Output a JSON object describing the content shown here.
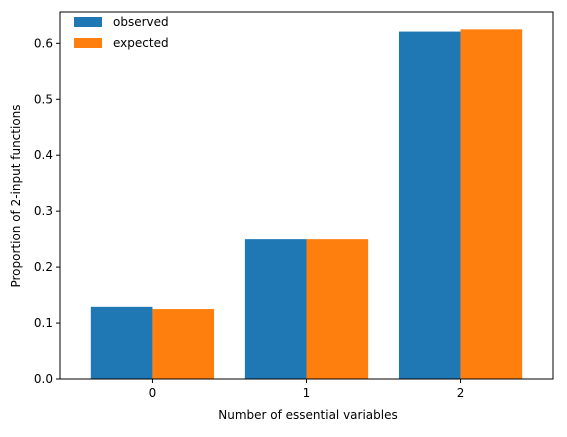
{
  "chart_data": {
    "type": "bar",
    "title": "",
    "xlabel": "Number of essential variables",
    "ylabel": "Proportion of 2-input functions",
    "categories": [
      "0",
      "1",
      "2"
    ],
    "series": [
      {
        "name": "observed",
        "values": [
          0.129,
          0.25,
          0.621
        ],
        "color": "#1f77b4"
      },
      {
        "name": "expected",
        "values": [
          0.125,
          0.25,
          0.625
        ],
        "color": "#ff7f0e"
      }
    ],
    "ylim": [
      0,
      0.656
    ],
    "yticks": [
      "0.0",
      "0.1",
      "0.2",
      "0.3",
      "0.4",
      "0.5",
      "0.6"
    ],
    "grid": false,
    "legend_position": "top-left"
  }
}
